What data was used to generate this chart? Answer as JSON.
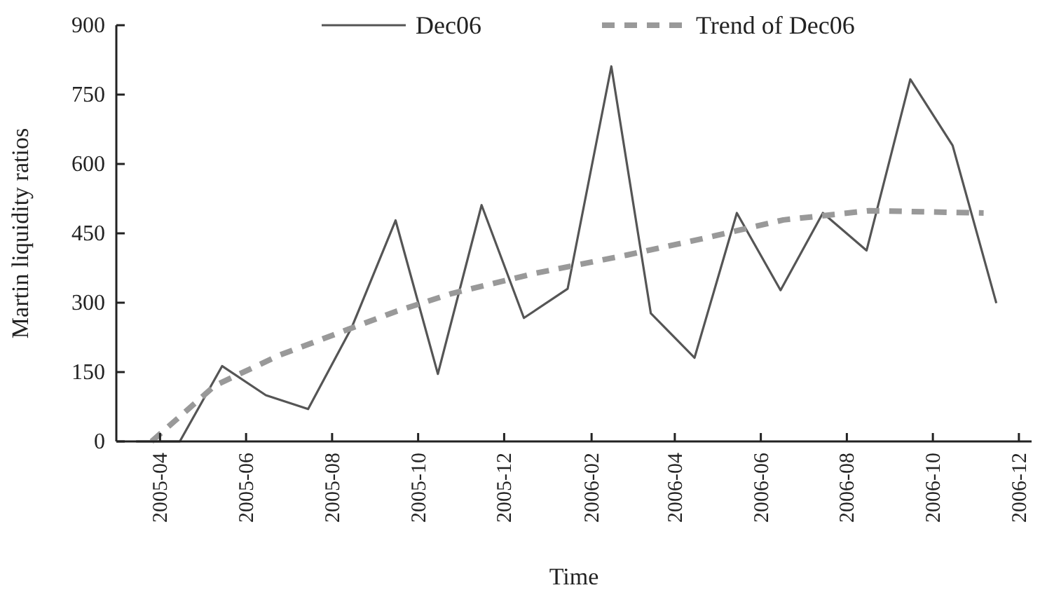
{
  "chart_data": {
    "type": "line",
    "xlabel": "Time",
    "ylabel": "Martin liquidity ratios",
    "xlim": [
      "2005-03-01",
      "2006-12-10"
    ],
    "xticks": [
      "2005-04",
      "2005-06",
      "2005-08",
      "2005-10",
      "2005-12",
      "2006-02",
      "2006-04",
      "2006-06",
      "2006-08",
      "2006-10",
      "2006-12"
    ],
    "ylim": [
      0,
      900
    ],
    "yticks": [
      0,
      150,
      300,
      450,
      600,
      750,
      900
    ],
    "grid": false,
    "legend": "top",
    "series": [
      {
        "name": "Dec06",
        "color": "#555555",
        "line_style": "solid",
        "x": [
          "2005-03-15",
          "2005-04-15",
          "2005-05-15",
          "2005-06-15",
          "2005-07-15",
          "2005-08-15",
          "2005-09-15",
          "2005-10-15",
          "2005-11-15",
          "2005-12-15",
          "2006-01-15",
          "2006-02-15",
          "2006-03-15",
          "2006-04-15",
          "2006-05-15",
          "2006-06-15",
          "2006-07-15",
          "2006-08-15",
          "2006-09-15",
          "2006-10-15",
          "2006-11-15"
        ],
        "values": [
          0,
          0,
          163,
          100,
          70,
          247,
          478,
          146,
          511,
          267,
          330,
          811,
          277,
          181,
          494,
          327,
          494,
          413,
          783,
          640,
          299
        ]
      },
      {
        "name": "Trend of Dec06",
        "color": "#999999",
        "line_style": "dashed",
        "x": [
          "2005-03-26",
          "2005-05-10",
          "2005-06-25",
          "2005-08-12",
          "2005-09-16",
          "2005-10-25",
          "2005-12-22",
          "2006-02-26",
          "2006-04-20",
          "2006-06-17",
          "2006-08-17",
          "2006-11-06"
        ],
        "values": [
          0,
          121,
          187,
          242,
          282,
          320,
          363,
          403,
          438,
          479,
          499,
          494
        ]
      }
    ]
  }
}
